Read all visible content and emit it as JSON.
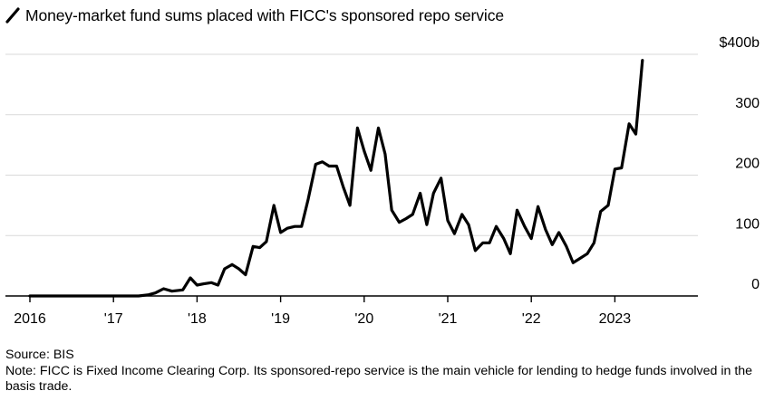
{
  "title": "Money-market fund sums placed with FICC's sponsored repo service",
  "source": "Source: BIS",
  "note": "Note: FICC is Fixed Income Clearing Corp. Its sponsored-repo service is the main vehicle for lending to hedge funds involved in the basis trade.",
  "colors": {
    "line": "#000000",
    "grid": "#d9d9d9",
    "axis": "#000000"
  },
  "chart_data": {
    "type": "line",
    "title": "Money-market fund sums placed with FICC's sponsored repo service",
    "xlabel": "",
    "ylabel": "",
    "ylim": [
      0,
      400
    ],
    "xlim": [
      2016.0,
      2024.0
    ],
    "grid": true,
    "y_ticks": [
      {
        "value": 400,
        "label": "$400b"
      },
      {
        "value": 300,
        "label": "300"
      },
      {
        "value": 200,
        "label": "200"
      },
      {
        "value": 100,
        "label": "100"
      },
      {
        "value": 0,
        "label": "0"
      }
    ],
    "x_ticks": [
      {
        "value": 2016,
        "label": "2016"
      },
      {
        "value": 2017,
        "label": "'17"
      },
      {
        "value": 2018,
        "label": "'18"
      },
      {
        "value": 2019,
        "label": "'19"
      },
      {
        "value": 2020,
        "label": "'20"
      },
      {
        "value": 2021,
        "label": "'21"
      },
      {
        "value": 2022,
        "label": "'22"
      },
      {
        "value": 2023,
        "label": "2023"
      }
    ],
    "series": [
      {
        "name": "Money-market fund sums placed with FICC's sponsored repo service ($b)",
        "x": [
          2016.0,
          2016.5,
          2017.0,
          2017.3,
          2017.42,
          2017.5,
          2017.6,
          2017.7,
          2017.83,
          2017.92,
          2018.0,
          2018.08,
          2018.17,
          2018.25,
          2018.33,
          2018.42,
          2018.5,
          2018.58,
          2018.67,
          2018.75,
          2018.83,
          2018.92,
          2019.0,
          2019.08,
          2019.17,
          2019.25,
          2019.33,
          2019.42,
          2019.5,
          2019.58,
          2019.67,
          2019.75,
          2019.83,
          2019.92,
          2020.0,
          2020.08,
          2020.17,
          2020.25,
          2020.33,
          2020.42,
          2020.5,
          2020.58,
          2020.67,
          2020.75,
          2020.83,
          2020.92,
          2021.0,
          2021.08,
          2021.17,
          2021.25,
          2021.33,
          2021.42,
          2021.5,
          2021.58,
          2021.67,
          2021.75,
          2021.83,
          2021.92,
          2022.0,
          2022.08,
          2022.17,
          2022.25,
          2022.33,
          2022.42,
          2022.5,
          2022.58,
          2022.67,
          2022.75,
          2022.83,
          2022.92,
          2023.0,
          2023.08,
          2023.17,
          2023.25,
          2023.33
        ],
        "values": [
          0,
          0,
          0,
          0,
          2,
          5,
          12,
          8,
          10,
          30,
          18,
          20,
          22,
          18,
          45,
          52,
          45,
          35,
          82,
          80,
          90,
          150,
          105,
          112,
          115,
          115,
          160,
          218,
          222,
          215,
          215,
          180,
          150,
          278,
          240,
          208,
          278,
          235,
          142,
          122,
          128,
          135,
          170,
          118,
          170,
          195,
          125,
          103,
          135,
          118,
          75,
          88,
          88,
          115,
          95,
          70,
          142,
          115,
          95,
          148,
          110,
          85,
          105,
          82,
          55,
          62,
          70,
          88,
          140,
          150,
          210,
          212,
          285,
          268,
          390
        ]
      }
    ]
  }
}
